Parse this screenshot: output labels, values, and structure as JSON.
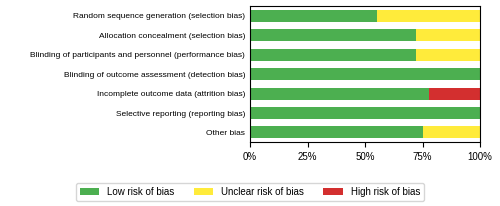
{
  "chart_data": {
    "type": "bar",
    "orientation": "horizontal",
    "stacked": true,
    "categories": [
      "Random sequence generation (selection bias)",
      "Allocation concealment (selection bias)",
      "Blinding of participants and personnel (performance bias)",
      "Blinding of outcome assessment (detection bias)",
      "Incomplete outcome data (attrition bias)",
      "Selective reporting (reporting bias)",
      "Other bias"
    ],
    "series": [
      {
        "name": "Low risk of bias",
        "color": "#4CAF50",
        "values": [
          55,
          72,
          72,
          100,
          78,
          100,
          75
        ]
      },
      {
        "name": "Unclear risk of bias",
        "color": "#FFEB3B",
        "values": [
          45,
          28,
          28,
          0,
          0,
          0,
          25
        ]
      },
      {
        "name": "High risk of bias",
        "color": "#D32F2F",
        "values": [
          0,
          0,
          0,
          0,
          22,
          0,
          0
        ]
      }
    ],
    "xlim": [
      0,
      100
    ],
    "xticks": [
      {
        "value": 0,
        "label": "0%"
      },
      {
        "value": 25,
        "label": "25%"
      },
      {
        "value": 50,
        "label": "50%"
      },
      {
        "value": 75,
        "label": "75%"
      },
      {
        "value": 100,
        "label": "100%"
      }
    ],
    "grid": false,
    "legend": "lower center"
  }
}
